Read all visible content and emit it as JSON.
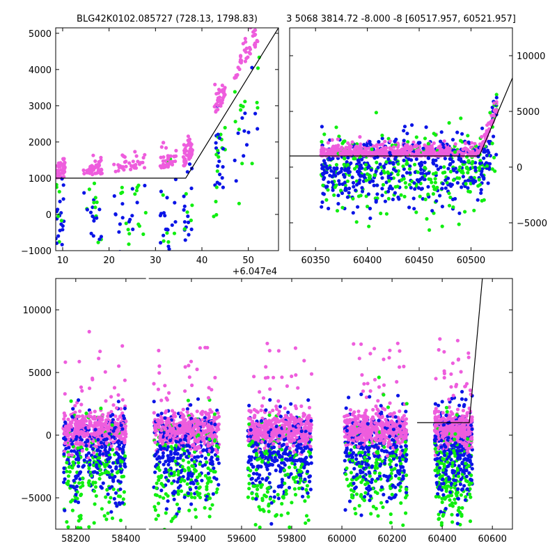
{
  "colors": {
    "pink": "#ee5ddd",
    "blue": "#0a14e6",
    "green": "#11ee11",
    "line": "#000000"
  },
  "chart_data": [
    {
      "type": "scatter",
      "title": "BLG42K0102.085727 (728.13, 1798.83)",
      "x_offset_label": "+6.047e4",
      "xlim": [
        8.5,
        56.5
      ],
      "ylim": [
        -1000,
        5150
      ],
      "xticks": [
        10,
        20,
        30,
        40,
        50
      ],
      "xtick_labels": [
        "10",
        "20",
        "30",
        "40",
        "50"
      ],
      "yticks": [
        -1000,
        0,
        1000,
        2000,
        3000,
        4000,
        5000
      ],
      "ytick_labels": [
        "−1000",
        "0",
        "1000",
        "2000",
        "3000",
        "4000",
        "5000"
      ],
      "yaxis_side": "left",
      "model_line": {
        "x": [
          8.5,
          36.5,
          56.5
        ],
        "y": [
          1000,
          1000,
          5150
        ]
      }
    },
    {
      "type": "scatter",
      "title": "3 5068 3814.72 -8.000 -8 [60517.957, 60521.957]",
      "xlim": [
        60325,
        60540
      ],
      "ylim": [
        -7500,
        12500
      ],
      "xticks": [
        60350,
        60400,
        60450,
        60500
      ],
      "xtick_labels": [
        "60350",
        "60400",
        "60450",
        "60500"
      ],
      "yticks": [
        -5000,
        0,
        5000,
        10000
      ],
      "ytick_labels": [
        "−5000",
        "0",
        "5000",
        "10000"
      ],
      "yaxis_side": "right",
      "model_line": {
        "x": [
          60325,
          60508,
          60540
        ],
        "y": [
          1000,
          1000,
          8000
        ]
      }
    },
    {
      "type": "scatter",
      "title": "",
      "xlim": [
        58120,
        60680
      ],
      "ylim": [
        -7500,
        12500
      ],
      "xticks": [
        58200,
        58400,
        59400,
        59600,
        59800,
        60000,
        60200,
        60400,
        60600
      ],
      "xtick_labels": [
        "58200",
        "58400",
        "59400",
        "59600",
        "59800",
        "60000",
        "60200",
        "60400",
        "60600"
      ],
      "yticks": [
        -5000,
        0,
        5000,
        10000
      ],
      "ytick_labels": [
        "−5000",
        "0",
        "5000",
        "10000"
      ],
      "yaxis_side": "left",
      "x_breaks": [
        {
          "left": 58480,
          "right": 59230
        }
      ],
      "seasons": [
        [
          58150,
          58400
        ],
        [
          59250,
          59510
        ],
        [
          59625,
          59880
        ],
        [
          60010,
          60260
        ],
        [
          60370,
          60520
        ]
      ],
      "model_line": {
        "x": [
          60300,
          60508,
          60560
        ],
        "y": [
          1000,
          1000,
          12500
        ]
      }
    }
  ]
}
